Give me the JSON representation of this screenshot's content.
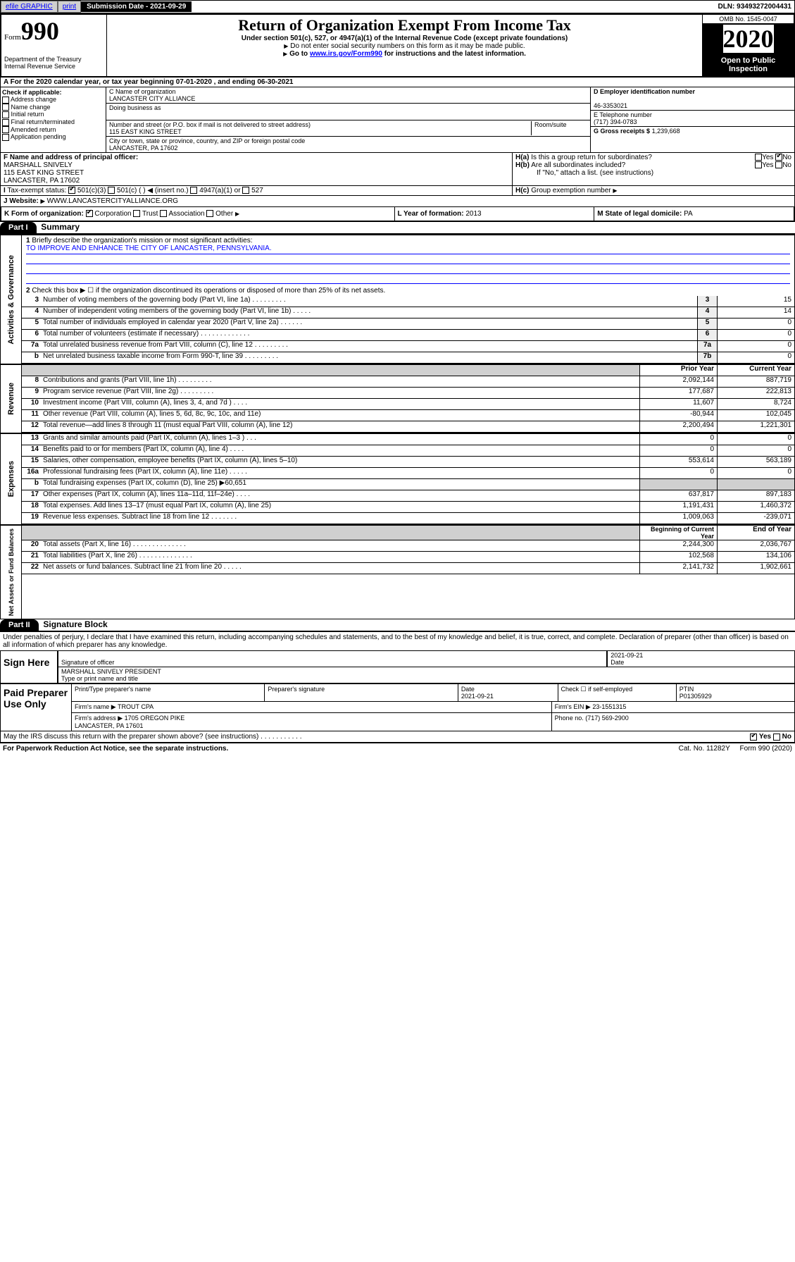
{
  "topbar": {
    "efile": "efile GRAPHIC",
    "print": "print",
    "subdate_label": "Submission Date - 2021-09-29",
    "dln": "DLN: 93493272004431"
  },
  "header": {
    "form_label": "Form",
    "form_num": "990",
    "dept": "Department of the Treasury\nInternal Revenue Service",
    "title": "Return of Organization Exempt From Income Tax",
    "subtitle": "Under section 501(c), 527, or 4947(a)(1) of the Internal Revenue Code (except private foundations)",
    "note1": "Do not enter social security numbers on this form as it may be made public.",
    "note2_prefix": "Go to ",
    "note2_link": "www.irs.gov/Form990",
    "note2_suffix": " for instructions and the latest information.",
    "omb": "OMB No. 1545-0047",
    "year": "2020",
    "open": "Open to Public Inspection"
  },
  "period": "For the 2020 calendar year, or tax year beginning 07-01-2020   , and ending 06-30-2021",
  "sectionB": {
    "label": "Check if applicable:",
    "items": [
      "Address change",
      "Name change",
      "Initial return",
      "Final return/terminated",
      "Amended return",
      "Application pending"
    ]
  },
  "sectionC": {
    "name_label": "C Name of organization",
    "name": "LANCASTER CITY ALLIANCE",
    "dba_label": "Doing business as",
    "addr_label": "Number and street (or P.O. box if mail is not delivered to street address)",
    "room_label": "Room/suite",
    "addr": "115 EAST KING STREET",
    "city_label": "City or town, state or province, country, and ZIP or foreign postal code",
    "city": "LANCASTER, PA  17602"
  },
  "sectionD": {
    "label": "D Employer identification number",
    "ein": "46-3353021"
  },
  "sectionE": {
    "label": "E Telephone number",
    "phone": "(717) 394-0783"
  },
  "sectionG": {
    "label": "G Gross receipts $",
    "amount": "1,239,668"
  },
  "sectionF": {
    "label": "F  Name and address of principal officer:",
    "name": "MARSHALL SNIVELY",
    "addr1": "115 EAST KING STREET",
    "addr2": "LANCASTER, PA  17602"
  },
  "sectionH": {
    "a": "Is this a group return for subordinates?",
    "b": "Are all subordinates included?",
    "b_note": "If \"No,\" attach a list. (see instructions)",
    "c": "Group exemption number"
  },
  "sectionI": {
    "label": "Tax-exempt status:",
    "opts": [
      "501(c)(3)",
      "501(c) (  ) ◀ (insert no.)",
      "4947(a)(1) or",
      "527"
    ]
  },
  "sectionJ": {
    "label": "Website:",
    "url": "WWW.LANCASTERCITYALLIANCE.ORG"
  },
  "sectionK": {
    "label": "K Form of organization:",
    "opts": [
      "Corporation",
      "Trust",
      "Association",
      "Other"
    ]
  },
  "sectionL": {
    "label": "L Year of formation:",
    "val": "2013"
  },
  "sectionM": {
    "label": "M State of legal domicile:",
    "val": "PA"
  },
  "part1": {
    "title": "Part I",
    "heading": "Summary",
    "vtext_ag": "Activities & Governance",
    "vtext_rev": "Revenue",
    "vtext_exp": "Expenses",
    "vtext_na": "Net Assets or Fund Balances",
    "line1": "Briefly describe the organization's mission or most significant activities:",
    "mission": "TO IMPROVE AND ENHANCE THE CITY OF LANCASTER, PENNSYLVANIA.",
    "line2": "Check this box ▶ ☐  if the organization discontinued its operations or disposed of more than 25% of its net assets.",
    "rows_ag": [
      {
        "n": "3",
        "t": "Number of voting members of the governing body (Part VI, line 1a)   .    .    .    .    .    .    .    .    .",
        "b": "3",
        "v": "15"
      },
      {
        "n": "4",
        "t": "Number of independent voting members of the governing body (Part VI, line 1b)   .    .    .    .    .",
        "b": "4",
        "v": "14"
      },
      {
        "n": "5",
        "t": "Total number of individuals employed in calendar year 2020 (Part V, line 2a)   .    .    .    .    .    .",
        "b": "5",
        "v": "0"
      },
      {
        "n": "6",
        "t": "Total number of volunteers (estimate if necessary)   .    .    .    .    .    .    .    .    .    .    .    .    .",
        "b": "6",
        "v": "0"
      },
      {
        "n": "7a",
        "t": "Total unrelated business revenue from Part VIII, column (C), line 12   .    .    .    .    .    .    .    .    .",
        "b": "7a",
        "v": "0"
      },
      {
        "n": "b",
        "t": "Net unrelated business taxable income from Form 990-T, line 39   .    .    .    .    .    .    .    .    .",
        "b": "7b",
        "v": "0"
      }
    ],
    "hdr_prior": "Prior Year",
    "hdr_curr": "Current Year",
    "rows_rev": [
      {
        "n": "8",
        "t": "Contributions and grants (Part VIII, line 1h)   .    .    .    .    .    .    .    .    .",
        "p": "2,092,144",
        "c": "887,719"
      },
      {
        "n": "9",
        "t": "Program service revenue (Part VIII, line 2g)   .    .    .    .    .    .    .    .    .",
        "p": "177,687",
        "c": "222,813"
      },
      {
        "n": "10",
        "t": "Investment income (Part VIII, column (A), lines 3, 4, and 7d )   .    .    .    .",
        "p": "11,607",
        "c": "8,724"
      },
      {
        "n": "11",
        "t": "Other revenue (Part VIII, column (A), lines 5, 6d, 8c, 9c, 10c, and 11e)",
        "p": "-80,944",
        "c": "102,045"
      },
      {
        "n": "12",
        "t": "Total revenue—add lines 8 through 11 (must equal Part VIII, column (A), line 12)",
        "p": "2,200,494",
        "c": "1,221,301"
      }
    ],
    "rows_exp": [
      {
        "n": "13",
        "t": "Grants and similar amounts paid (Part IX, column (A), lines 1–3 )   .    .    .",
        "p": "0",
        "c": "0"
      },
      {
        "n": "14",
        "t": "Benefits paid to or for members (Part IX, column (A), line 4)   .    .    .    .",
        "p": "0",
        "c": "0"
      },
      {
        "n": "15",
        "t": "Salaries, other compensation, employee benefits (Part IX, column (A), lines 5–10)",
        "p": "553,614",
        "c": "563,189"
      },
      {
        "n": "16a",
        "t": "Professional fundraising fees (Part IX, column (A), line 11e)   .    .    .    .    .",
        "p": "0",
        "c": "0"
      },
      {
        "n": "b",
        "t": "Total fundraising expenses (Part IX, column (D), line 25) ▶60,651",
        "p": "",
        "c": ""
      },
      {
        "n": "17",
        "t": "Other expenses (Part IX, column (A), lines 11a–11d, 11f–24e)   .    .    .    .",
        "p": "637,817",
        "c": "897,183"
      },
      {
        "n": "18",
        "t": "Total expenses. Add lines 13–17 (must equal Part IX, column (A), line 25)",
        "p": "1,191,431",
        "c": "1,460,372"
      },
      {
        "n": "19",
        "t": "Revenue less expenses. Subtract line 18 from line 12   .    .    .    .    .    .    .",
        "p": "1,009,063",
        "c": "-239,071"
      }
    ],
    "hdr_begin": "Beginning of Current Year",
    "hdr_end": "End of Year",
    "rows_na": [
      {
        "n": "20",
        "t": "Total assets (Part X, line 16)   .    .    .    .    .    .    .    .    .    .    .    .    .    .",
        "p": "2,244,300",
        "c": "2,036,767"
      },
      {
        "n": "21",
        "t": "Total liabilities (Part X, line 26)  .    .    .    .    .    .    .    .    .    .    .    .    .    .",
        "p": "102,568",
        "c": "134,106"
      },
      {
        "n": "22",
        "t": "Net assets or fund balances. Subtract line 21 from line 20   .    .    .    .    .",
        "p": "2,141,732",
        "c": "1,902,661"
      }
    ]
  },
  "part2": {
    "title": "Part II",
    "heading": "Signature Block",
    "penalty": "Under penalties of perjury, I declare that I have examined this return, including accompanying schedules and statements, and to the best of my knowledge and belief, it is true, correct, and complete. Declaration of preparer (other than officer) is based on all information of which preparer has any knowledge.",
    "sign_here": "Sign Here",
    "sig_officer": "Signature of officer",
    "sig_date": "2021-09-21",
    "sig_date_label": "Date",
    "officer_name": "MARSHALL SNIVELY PRESIDENT",
    "officer_name_label": "Type or print name and title",
    "paid_label": "Paid Preparer Use Only",
    "prep_name_label": "Print/Type preparer's name",
    "prep_sig_label": "Preparer's signature",
    "prep_date_label": "Date",
    "prep_date": "2021-09-21",
    "prep_self": "Check ☐ if self-employed",
    "ptin_label": "PTIN",
    "ptin": "P01305929",
    "firm_name_label": "Firm's name   ▶",
    "firm_name": "TROUT CPA",
    "firm_ein_label": "Firm's EIN ▶",
    "firm_ein": "23-1551315",
    "firm_addr_label": "Firm's address ▶",
    "firm_addr": "1705 OREGON PIKE\nLANCASTER, PA  17601",
    "firm_phone_label": "Phone no.",
    "firm_phone": "(717) 569-2900",
    "discuss": "May the IRS discuss this return with the preparer shown above? (see instructions)   .    .    .    .    .    .    .    .    .    .    ."
  },
  "footer": {
    "pra": "For Paperwork Reduction Act Notice, see the separate instructions.",
    "cat": "Cat. No. 11282Y",
    "form": "Form 990 (2020)"
  }
}
